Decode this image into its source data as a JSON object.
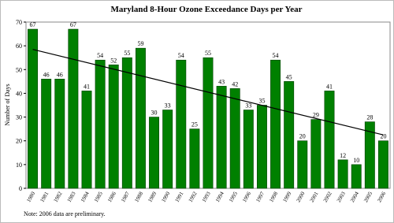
{
  "chart_data": {
    "type": "bar",
    "title": "Maryland 8-Hour Ozone Exceedance Days per Year",
    "y_label": "Number of Days",
    "note": "Note: 2006 data are preliminary.",
    "categories": [
      "1980",
      "1981",
      "1982",
      "1983",
      "1984",
      "1985",
      "1986",
      "1987",
      "1988",
      "1989",
      "1990",
      "1991",
      "1992",
      "1993",
      "1994",
      "1995",
      "1996",
      "1997",
      "1998",
      "1999",
      "2000",
      "2001",
      "2002",
      "2003",
      "2004",
      "2005",
      "2006"
    ],
    "values": [
      67,
      46,
      46,
      67,
      41,
      54,
      52,
      55,
      59,
      30,
      33,
      54,
      25,
      55,
      43,
      42,
      33,
      35,
      54,
      45,
      20,
      29,
      41,
      12,
      10,
      28,
      20
    ],
    "color": "#008000",
    "trendline": [
      58.5,
      22.5
    ],
    "ylim": [
      0,
      70
    ],
    "yticks": [
      0,
      10,
      20,
      30,
      40,
      50,
      60,
      70
    ]
  }
}
